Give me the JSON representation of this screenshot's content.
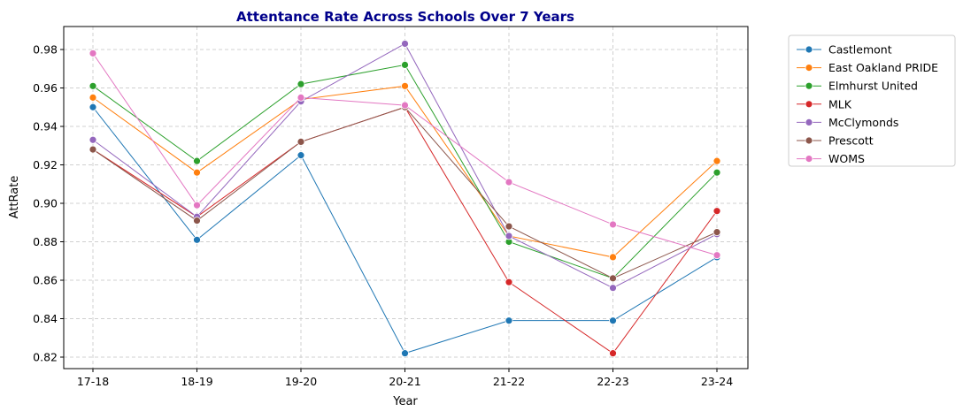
{
  "chart_data": {
    "type": "line",
    "title": "Attentance Rate Across Schools Over 7 Years",
    "title_color": "#00008b",
    "xlabel": "Year",
    "ylabel": "AttRate",
    "categories": [
      "17-18",
      "18-19",
      "19-20",
      "20-21",
      "21-22",
      "22-23",
      "23-24"
    ],
    "ylim": [
      0.814,
      0.991
    ],
    "yticks": [
      0.82,
      0.84,
      0.86,
      0.88,
      0.9,
      0.92,
      0.94,
      0.96,
      0.98
    ],
    "ytick_labels": [
      "0.82",
      "0.84",
      "0.86",
      "0.88",
      "0.90",
      "0.92",
      "0.94",
      "0.96",
      "0.98"
    ],
    "grid": true,
    "legend_position": "outside-top-right",
    "series": [
      {
        "name": "Castlemont",
        "color": "#1f77b4",
        "values": [
          0.95,
          0.881,
          0.925,
          0.822,
          0.839,
          0.839,
          0.872
        ]
      },
      {
        "name": "East Oakland PRIDE",
        "color": "#ff7f0e",
        "values": [
          0.955,
          0.916,
          0.954,
          0.961,
          0.883,
          0.872,
          0.922
        ]
      },
      {
        "name": "Elmhurst United",
        "color": "#2ca02c",
        "values": [
          0.961,
          0.922,
          0.962,
          0.972,
          0.88,
          0.861,
          0.916
        ]
      },
      {
        "name": "MLK",
        "color": "#d62728",
        "values": [
          0.928,
          0.893,
          0.932,
          0.95,
          0.859,
          0.822,
          0.896
        ]
      },
      {
        "name": "McClymonds",
        "color": "#9467bd",
        "values": [
          0.933,
          0.893,
          0.953,
          0.983,
          0.883,
          0.856,
          0.884
        ]
      },
      {
        "name": "Prescott",
        "color": "#8c564b",
        "values": [
          0.928,
          0.891,
          0.932,
          0.95,
          0.888,
          0.861,
          0.885
        ]
      },
      {
        "name": "WOMS",
        "color": "#e377c2",
        "values": [
          0.978,
          0.899,
          0.955,
          0.951,
          0.911,
          0.889,
          0.873
        ]
      }
    ]
  }
}
